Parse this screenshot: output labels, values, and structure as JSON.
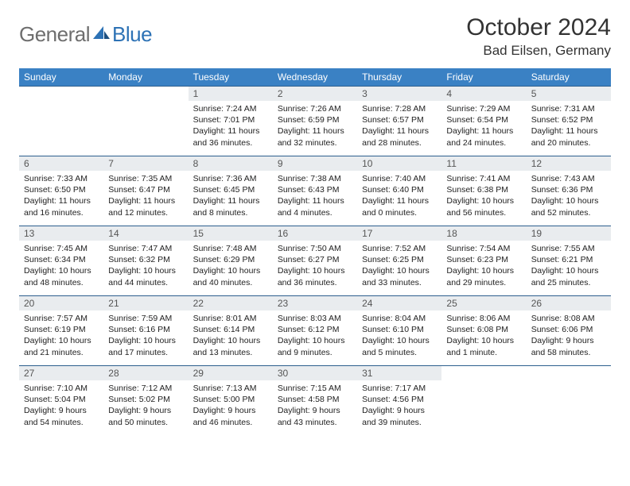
{
  "logo": {
    "general": "General",
    "blue": "Blue"
  },
  "title": "October 2024",
  "location": "Bad Eilsen, Germany",
  "colors": {
    "header_bg": "#3a81c4",
    "header_text": "#ffffff",
    "daynum_bg": "#e9ecef",
    "daynum_text": "#555555",
    "cell_border": "#2d5f8e",
    "logo_gray": "#6e6e6e",
    "logo_blue": "#2d72b5"
  },
  "day_headers": [
    "Sunday",
    "Monday",
    "Tuesday",
    "Wednesday",
    "Thursday",
    "Friday",
    "Saturday"
  ],
  "weeks": [
    [
      null,
      null,
      {
        "n": "1",
        "sunrise": "7:24 AM",
        "sunset": "7:01 PM",
        "daylight": "11 hours and 36 minutes."
      },
      {
        "n": "2",
        "sunrise": "7:26 AM",
        "sunset": "6:59 PM",
        "daylight": "11 hours and 32 minutes."
      },
      {
        "n": "3",
        "sunrise": "7:28 AM",
        "sunset": "6:57 PM",
        "daylight": "11 hours and 28 minutes."
      },
      {
        "n": "4",
        "sunrise": "7:29 AM",
        "sunset": "6:54 PM",
        "daylight": "11 hours and 24 minutes."
      },
      {
        "n": "5",
        "sunrise": "7:31 AM",
        "sunset": "6:52 PM",
        "daylight": "11 hours and 20 minutes."
      }
    ],
    [
      {
        "n": "6",
        "sunrise": "7:33 AM",
        "sunset": "6:50 PM",
        "daylight": "11 hours and 16 minutes."
      },
      {
        "n": "7",
        "sunrise": "7:35 AM",
        "sunset": "6:47 PM",
        "daylight": "11 hours and 12 minutes."
      },
      {
        "n": "8",
        "sunrise": "7:36 AM",
        "sunset": "6:45 PM",
        "daylight": "11 hours and 8 minutes."
      },
      {
        "n": "9",
        "sunrise": "7:38 AM",
        "sunset": "6:43 PM",
        "daylight": "11 hours and 4 minutes."
      },
      {
        "n": "10",
        "sunrise": "7:40 AM",
        "sunset": "6:40 PM",
        "daylight": "11 hours and 0 minutes."
      },
      {
        "n": "11",
        "sunrise": "7:41 AM",
        "sunset": "6:38 PM",
        "daylight": "10 hours and 56 minutes."
      },
      {
        "n": "12",
        "sunrise": "7:43 AM",
        "sunset": "6:36 PM",
        "daylight": "10 hours and 52 minutes."
      }
    ],
    [
      {
        "n": "13",
        "sunrise": "7:45 AM",
        "sunset": "6:34 PM",
        "daylight": "10 hours and 48 minutes."
      },
      {
        "n": "14",
        "sunrise": "7:47 AM",
        "sunset": "6:32 PM",
        "daylight": "10 hours and 44 minutes."
      },
      {
        "n": "15",
        "sunrise": "7:48 AM",
        "sunset": "6:29 PM",
        "daylight": "10 hours and 40 minutes."
      },
      {
        "n": "16",
        "sunrise": "7:50 AM",
        "sunset": "6:27 PM",
        "daylight": "10 hours and 36 minutes."
      },
      {
        "n": "17",
        "sunrise": "7:52 AM",
        "sunset": "6:25 PM",
        "daylight": "10 hours and 33 minutes."
      },
      {
        "n": "18",
        "sunrise": "7:54 AM",
        "sunset": "6:23 PM",
        "daylight": "10 hours and 29 minutes."
      },
      {
        "n": "19",
        "sunrise": "7:55 AM",
        "sunset": "6:21 PM",
        "daylight": "10 hours and 25 minutes."
      }
    ],
    [
      {
        "n": "20",
        "sunrise": "7:57 AM",
        "sunset": "6:19 PM",
        "daylight": "10 hours and 21 minutes."
      },
      {
        "n": "21",
        "sunrise": "7:59 AM",
        "sunset": "6:16 PM",
        "daylight": "10 hours and 17 minutes."
      },
      {
        "n": "22",
        "sunrise": "8:01 AM",
        "sunset": "6:14 PM",
        "daylight": "10 hours and 13 minutes."
      },
      {
        "n": "23",
        "sunrise": "8:03 AM",
        "sunset": "6:12 PM",
        "daylight": "10 hours and 9 minutes."
      },
      {
        "n": "24",
        "sunrise": "8:04 AM",
        "sunset": "6:10 PM",
        "daylight": "10 hours and 5 minutes."
      },
      {
        "n": "25",
        "sunrise": "8:06 AM",
        "sunset": "6:08 PM",
        "daylight": "10 hours and 1 minute."
      },
      {
        "n": "26",
        "sunrise": "8:08 AM",
        "sunset": "6:06 PM",
        "daylight": "9 hours and 58 minutes."
      }
    ],
    [
      {
        "n": "27",
        "sunrise": "7:10 AM",
        "sunset": "5:04 PM",
        "daylight": "9 hours and 54 minutes."
      },
      {
        "n": "28",
        "sunrise": "7:12 AM",
        "sunset": "5:02 PM",
        "daylight": "9 hours and 50 minutes."
      },
      {
        "n": "29",
        "sunrise": "7:13 AM",
        "sunset": "5:00 PM",
        "daylight": "9 hours and 46 minutes."
      },
      {
        "n": "30",
        "sunrise": "7:15 AM",
        "sunset": "4:58 PM",
        "daylight": "9 hours and 43 minutes."
      },
      {
        "n": "31",
        "sunrise": "7:17 AM",
        "sunset": "4:56 PM",
        "daylight": "9 hours and 39 minutes."
      },
      null,
      null
    ]
  ],
  "labels": {
    "sunrise": "Sunrise:",
    "sunset": "Sunset:",
    "daylight": "Daylight:"
  }
}
